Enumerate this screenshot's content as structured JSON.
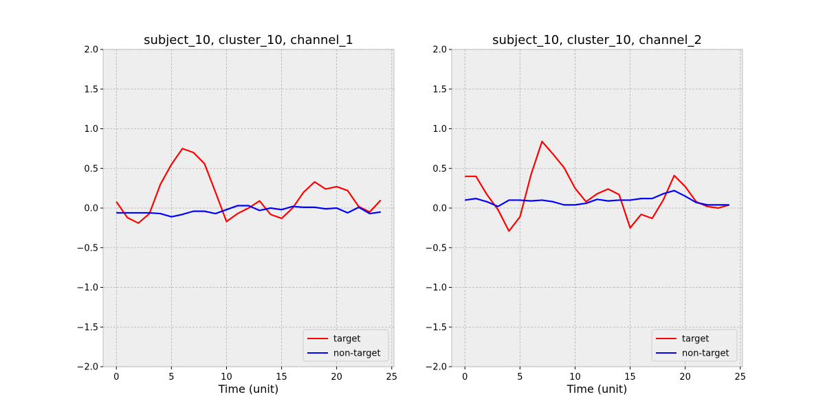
{
  "chart_data": [
    {
      "type": "line",
      "title": "subject_10, cluster_10, channel_1",
      "xlabel": "Time (unit)",
      "ylabel": "",
      "xlim": [
        -1.2,
        25.2
      ],
      "ylim": [
        -2.0,
        2.0
      ],
      "xticks": [
        "0",
        "5",
        "10",
        "15",
        "20",
        "25"
      ],
      "yticks": [
        "−2.0",
        "−1.5",
        "−1.0",
        "−0.5",
        "0.0",
        "0.5",
        "1.0",
        "1.5",
        "2.0"
      ],
      "grid": true,
      "legend_position": "lower-right",
      "x": [
        0,
        1,
        2,
        3,
        4,
        5,
        6,
        7,
        8,
        9,
        10,
        11,
        12,
        13,
        14,
        15,
        16,
        17,
        18,
        19,
        20,
        21,
        22,
        23,
        24
      ],
      "series": [
        {
          "name": "target",
          "color": "#ff0000",
          "values": [
            0.08,
            -0.12,
            -0.19,
            -0.07,
            0.3,
            0.55,
            0.75,
            0.7,
            0.56,
            0.2,
            -0.17,
            -0.07,
            0.0,
            0.09,
            -0.08,
            -0.13,
            0.0,
            0.2,
            0.33,
            0.24,
            0.27,
            0.22,
            0.02,
            -0.05,
            0.1
          ]
        },
        {
          "name": "non-target",
          "color": "#0000ff",
          "values": [
            -0.06,
            -0.06,
            -0.06,
            -0.06,
            -0.07,
            -0.11,
            -0.08,
            -0.04,
            -0.04,
            -0.07,
            -0.02,
            0.03,
            0.03,
            -0.03,
            0.0,
            -0.02,
            0.02,
            0.01,
            0.01,
            -0.01,
            0.0,
            -0.06,
            0.01,
            -0.07,
            -0.05
          ]
        }
      ]
    },
    {
      "type": "line",
      "title": "subject_10, cluster_10, channel_2",
      "xlabel": "Time (unit)",
      "ylabel": "",
      "xlim": [
        -1.2,
        25.2
      ],
      "ylim": [
        -2.0,
        2.0
      ],
      "xticks": [
        "0",
        "5",
        "10",
        "15",
        "20",
        "25"
      ],
      "yticks": [
        "−2.0",
        "−1.5",
        "−1.0",
        "−0.5",
        "0.0",
        "0.5",
        "1.0",
        "1.5",
        "2.0"
      ],
      "grid": true,
      "legend_position": "lower-right",
      "x": [
        0,
        1,
        2,
        3,
        4,
        5,
        6,
        7,
        8,
        9,
        10,
        11,
        12,
        13,
        14,
        15,
        16,
        17,
        18,
        19,
        20,
        21,
        22,
        23,
        24
      ],
      "series": [
        {
          "name": "target",
          "color": "#ff0000",
          "values": [
            0.4,
            0.4,
            0.17,
            -0.02,
            -0.29,
            -0.11,
            0.42,
            0.84,
            0.68,
            0.51,
            0.25,
            0.08,
            0.18,
            0.24,
            0.17,
            -0.25,
            -0.08,
            -0.13,
            0.1,
            0.41,
            0.27,
            0.08,
            0.02,
            0.0,
            0.04
          ]
        },
        {
          "name": "non-target",
          "color": "#0000ff",
          "values": [
            0.1,
            0.12,
            0.08,
            0.02,
            0.1,
            0.1,
            0.09,
            0.1,
            0.08,
            0.04,
            0.04,
            0.06,
            0.11,
            0.09,
            0.1,
            0.1,
            0.12,
            0.12,
            0.18,
            0.22,
            0.15,
            0.07,
            0.04,
            0.04,
            0.04
          ]
        }
      ]
    }
  ]
}
